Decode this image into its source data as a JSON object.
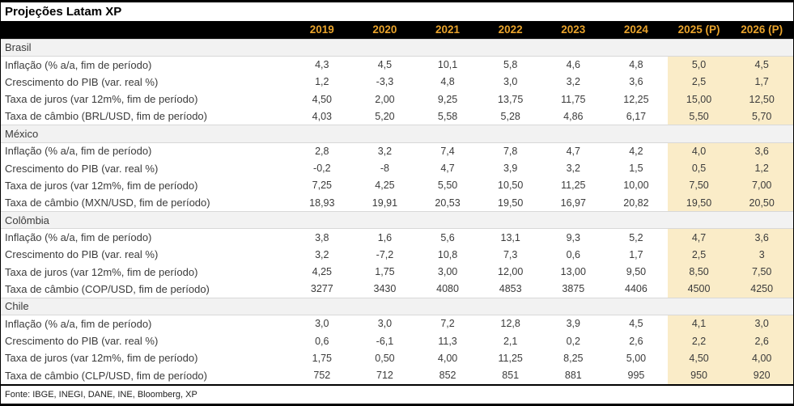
{
  "colors": {
    "header_bg": "#000000",
    "year_text": "#E9A32B",
    "projection_highlight_bg": "#FAECC8",
    "country_row_bg": "#F2F2F2",
    "section_divider": "#D8D8D8",
    "frame_border": "#000000"
  },
  "chart_data": {
    "type": "table",
    "title": "Projeções Latam XP",
    "columns": [
      "2019",
      "2020",
      "2021",
      "2022",
      "2023",
      "2024",
      "2025 (P)",
      "2026 (P)"
    ],
    "highlighted_columns": [
      "2025 (P)",
      "2026 (P)"
    ],
    "sections": [
      {
        "country": "Brasil",
        "rows": [
          {
            "label": "Inflação (% a/a, fim de período)",
            "values": [
              "4,3",
              "4,5",
              "10,1",
              "5,8",
              "4,6",
              "4,8",
              "5,0",
              "4,5"
            ]
          },
          {
            "label": "Crescimento do PIB (var. real %)",
            "values": [
              "1,2",
              "-3,3",
              "4,8",
              "3,0",
              "3,2",
              "3,6",
              "2,5",
              "1,7"
            ]
          },
          {
            "label": "Taxa de juros (var 12m%, fim de período)",
            "values": [
              "4,50",
              "2,00",
              "9,25",
              "13,75",
              "11,75",
              "12,25",
              "15,00",
              "12,50"
            ]
          },
          {
            "label": "Taxa de câmbio (BRL/USD, fim de período)",
            "values": [
              "4,03",
              "5,20",
              "5,58",
              "5,28",
              "4,86",
              "6,17",
              "5,50",
              "5,70"
            ]
          }
        ]
      },
      {
        "country": "México",
        "rows": [
          {
            "label": "Inflação (% a/a, fim de período)",
            "values": [
              "2,8",
              "3,2",
              "7,4",
              "7,8",
              "4,7",
              "4,2",
              "4,0",
              "3,6"
            ]
          },
          {
            "label": "Crescimento do PIB (var. real %)",
            "values": [
              "-0,2",
              "-8",
              "4,7",
              "3,9",
              "3,2",
              "1,5",
              "0,5",
              "1,2"
            ]
          },
          {
            "label": "Taxa de juros (var 12m%, fim de período)",
            "values": [
              "7,25",
              "4,25",
              "5,50",
              "10,50",
              "11,25",
              "10,00",
              "7,50",
              "7,00"
            ]
          },
          {
            "label": "Taxa de câmbio (MXN/USD, fim de período)",
            "values": [
              "18,93",
              "19,91",
              "20,53",
              "19,50",
              "16,97",
              "20,82",
              "19,50",
              "20,50"
            ]
          }
        ]
      },
      {
        "country": "Colômbia",
        "rows": [
          {
            "label": "Inflação (% a/a, fim de período)",
            "values": [
              "3,8",
              "1,6",
              "5,6",
              "13,1",
              "9,3",
              "5,2",
              "4,7",
              "3,6"
            ]
          },
          {
            "label": "Crescimento do PIB (var. real %)",
            "values": [
              "3,2",
              "-7,2",
              "10,8",
              "7,3",
              "0,6",
              "1,7",
              "2,5",
              "3"
            ]
          },
          {
            "label": "Taxa de juros (var 12m%, fim de período)",
            "values": [
              "4,25",
              "1,75",
              "3,00",
              "12,00",
              "13,00",
              "9,50",
              "8,50",
              "7,50"
            ]
          },
          {
            "label": "Taxa de câmbio (COP/USD, fim de período)",
            "values": [
              "3277",
              "3430",
              "4080",
              "4853",
              "3875",
              "4406",
              "4500",
              "4250"
            ]
          }
        ]
      },
      {
        "country": "Chile",
        "rows": [
          {
            "label": "Inflação (% a/a, fim de período)",
            "values": [
              "3,0",
              "3,0",
              "7,2",
              "12,8",
              "3,9",
              "4,5",
              "4,1",
              "3,0"
            ]
          },
          {
            "label": "Crescimento do PIB (var. real %)",
            "values": [
              "0,6",
              "-6,1",
              "11,3",
              "2,1",
              "0,2",
              "2,6",
              "2,2",
              "2,6"
            ]
          },
          {
            "label": "Taxa de juros (var 12m%, fim de período)",
            "values": [
              "1,75",
              "0,50",
              "4,00",
              "11,25",
              "8,25",
              "5,00",
              "4,50",
              "4,00"
            ]
          },
          {
            "label": "Taxa de câmbio (CLP/USD, fim de período)",
            "values": [
              "752",
              "712",
              "852",
              "851",
              "881",
              "995",
              "950",
              "920"
            ]
          }
        ]
      }
    ],
    "source": "Fonte: IBGE, INEGI, DANE, INE, Bloomberg, XP"
  }
}
